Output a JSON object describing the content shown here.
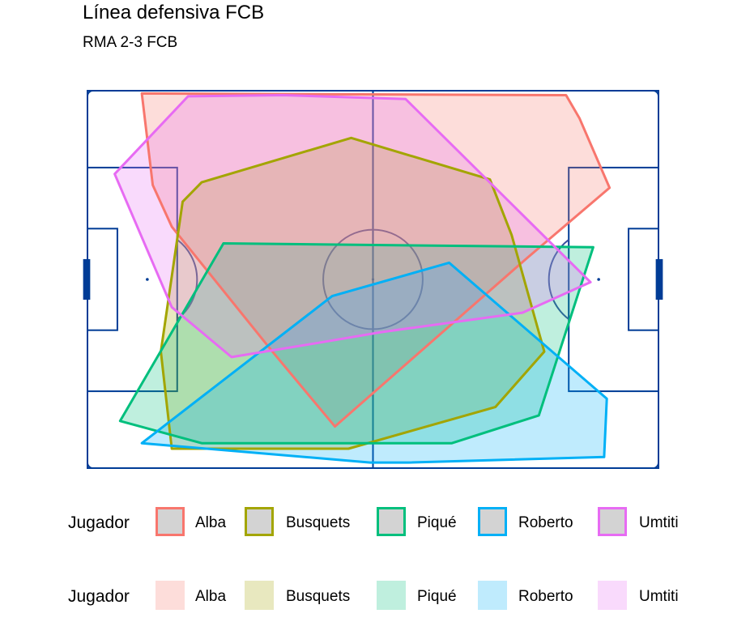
{
  "chart_data": {
    "type": "area",
    "title": "Línea defensiva FCB",
    "subtitle": "RMA 2-3 FCB",
    "pitch": {
      "length": 105,
      "width": 68,
      "line_color": "#003C96"
    },
    "series": [
      {
        "name": "Alba",
        "color": "#F8766D",
        "hull": [
          [
            10,
            67.5
          ],
          [
            88,
            67.2
          ],
          [
            90.5,
            63
          ],
          [
            96,
            50.5
          ],
          [
            81,
            38
          ],
          [
            45.5,
            7.5
          ],
          [
            34,
            21
          ],
          [
            15.5,
            43.5
          ],
          [
            12,
            51
          ],
          [
            10,
            67.5
          ]
        ]
      },
      {
        "name": "Busquets",
        "color": "#A3A500",
        "hull": [
          [
            48.5,
            59.5
          ],
          [
            74,
            52
          ],
          [
            78,
            42
          ],
          [
            84,
            21
          ],
          [
            75,
            11
          ],
          [
            48,
            3.5
          ],
          [
            16,
            3.5
          ],
          [
            15.5,
            3.5
          ],
          [
            13.5,
            21
          ],
          [
            17.5,
            48
          ],
          [
            21,
            51.5
          ],
          [
            48.5,
            59.5
          ]
        ]
      },
      {
        "name": "Piqué",
        "color": "#00BF7D",
        "hull": [
          [
            25,
            40.5
          ],
          [
            93,
            39.8
          ],
          [
            83,
            9.5
          ],
          [
            67,
            4.5
          ],
          [
            52.5,
            4.5
          ],
          [
            42.5,
            4.5
          ],
          [
            21,
            4.5
          ],
          [
            6,
            8.5
          ],
          [
            25,
            40.5
          ]
        ]
      },
      {
        "name": "Roberto",
        "color": "#00B0F6",
        "hull": [
          [
            66.5,
            37
          ],
          [
            95.5,
            12.5
          ],
          [
            95,
            2
          ],
          [
            59,
            1
          ],
          [
            52,
            1
          ],
          [
            10,
            4.5
          ],
          [
            45,
            31
          ],
          [
            66.5,
            37
          ]
        ]
      },
      {
        "name": "Umtiti",
        "color": "#E76BF3",
        "hull": [
          [
            18.5,
            67
          ],
          [
            36,
            67.2
          ],
          [
            58.5,
            66.5
          ],
          [
            92.5,
            33.5
          ],
          [
            80,
            28
          ],
          [
            54,
            24.5
          ],
          [
            42,
            22.5
          ],
          [
            26.5,
            20
          ],
          [
            15.5,
            29
          ],
          [
            5,
            53
          ],
          [
            18.5,
            67
          ]
        ]
      }
    ],
    "legends": [
      {
        "title": "Jugador",
        "kind": "colour",
        "entries": [
          "Alba",
          "Busquets",
          "Piqué",
          "Roberto",
          "Umtiti"
        ]
      },
      {
        "title": "Jugador",
        "kind": "fill",
        "entries": [
          "Alba",
          "Busquets",
          "Piqué",
          "Roberto",
          "Umtiti"
        ]
      }
    ],
    "legend_position": "bottom",
    "grid": false
  }
}
